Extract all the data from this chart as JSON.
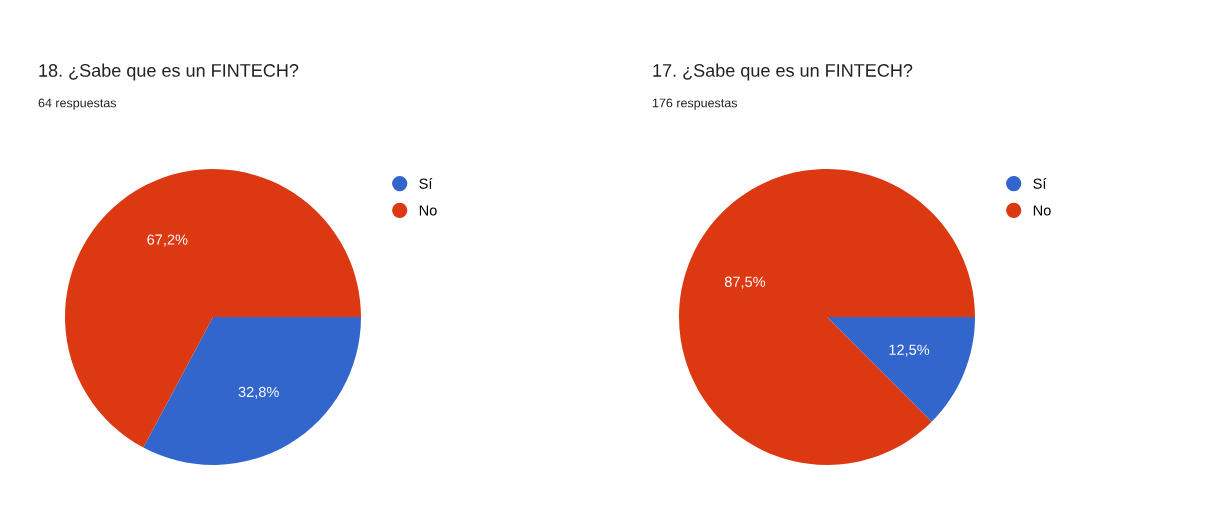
{
  "chart_data": [
    {
      "type": "pie",
      "title": "18. ¿Sabe que es un FINTECH?",
      "subtitle": "64 respuestas",
      "categories": [
        "Sí",
        "No"
      ],
      "values": [
        32.8,
        67.2
      ],
      "colors": [
        "#3366cc",
        "#dc3912"
      ],
      "value_labels": [
        "32,8%",
        "67,2%"
      ],
      "legend": "right"
    },
    {
      "type": "pie",
      "title": "17. ¿Sabe que es un FINTECH?",
      "subtitle": "176 respuestas",
      "categories": [
        "Sí",
        "No"
      ],
      "values": [
        12.5,
        87.5
      ],
      "colors": [
        "#3366cc",
        "#dc3912"
      ],
      "value_labels": [
        "12,5%",
        "87,5%"
      ],
      "legend": "right"
    }
  ]
}
